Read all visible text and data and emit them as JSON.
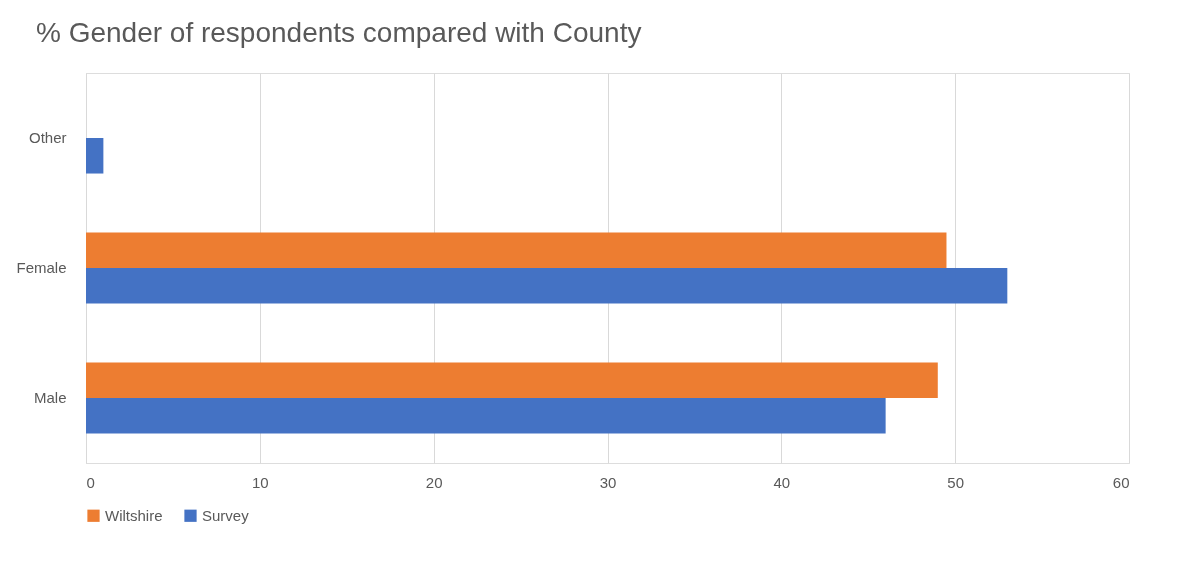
{
  "chart_data": {
    "type": "bar",
    "orientation": "horizontal",
    "title": "% Gender of respondents compared with County",
    "categories": [
      "Other",
      "Female",
      "Male"
    ],
    "series": [
      {
        "name": "Wiltshire",
        "color": "#ed7d31",
        "values": [
          null,
          49.5,
          49
        ]
      },
      {
        "name": "Survey",
        "color": "#4472c4",
        "values": [
          1,
          53,
          46
        ]
      }
    ],
    "xlim": [
      0,
      60
    ],
    "xticks": [
      0,
      10,
      20,
      30,
      40,
      50,
      60
    ],
    "grid": "x",
    "legend": "bottom"
  }
}
